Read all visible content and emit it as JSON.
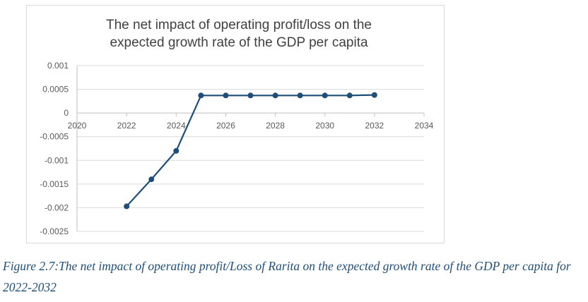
{
  "chart_data": {
    "type": "line",
    "title": [
      "The net impact of operating profit/loss on the",
      "expected growth rate of the GDP per capita"
    ],
    "xlabel": "",
    "ylabel": "",
    "xlim": [
      2020,
      2034
    ],
    "ylim": [
      -0.0025,
      0.001
    ],
    "x_ticks": [
      2020,
      2022,
      2024,
      2026,
      2028,
      2030,
      2032,
      2034
    ],
    "x_tick_labels": [
      "2020",
      "2022",
      "2024",
      "2026",
      "2028",
      "2030",
      "2032",
      "2034"
    ],
    "y_ticks": [
      0.001,
      0.0005,
      0,
      -0.0005,
      -0.001,
      -0.0015,
      -0.002,
      -0.0025
    ],
    "y_tick_labels": [
      "0.001",
      "0.0005",
      "0",
      "-0.0005",
      "-0.001",
      "-0.0015",
      "-0.002",
      "-0.0025"
    ],
    "grid": true,
    "legend": "none",
    "series": [
      {
        "color": "#1f4e79",
        "x": [
          2022,
          2023,
          2024,
          2025,
          2026,
          2027,
          2028,
          2029,
          2030,
          2031,
          2032
        ],
        "y": [
          -0.00197,
          -0.0014,
          -0.0008,
          0.00037,
          0.00037,
          0.00037,
          0.00037,
          0.00037,
          0.00037,
          0.00037,
          0.00038
        ]
      }
    ]
  },
  "caption": "Figure 2.7:The net impact of operating profit/Loss of Rarita on the expected growth rate of the GDP per capita for 2022-2032"
}
